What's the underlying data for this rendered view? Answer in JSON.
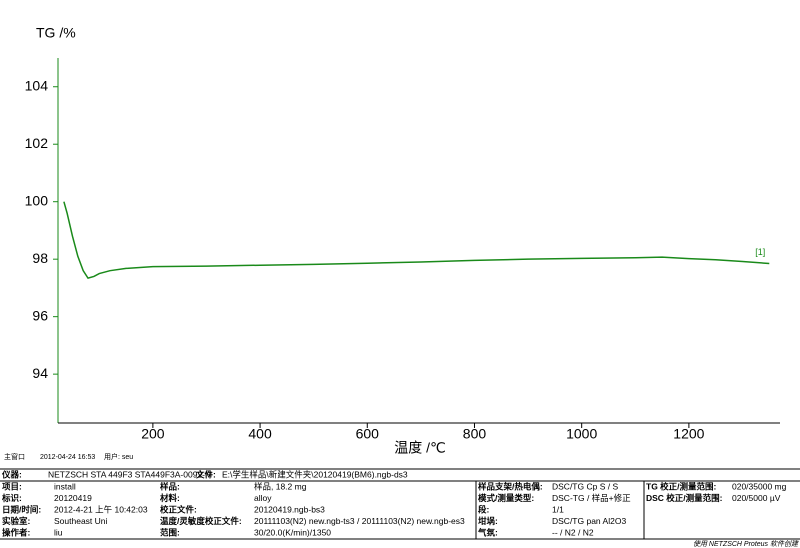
{
  "chart_data": {
    "type": "line",
    "ylabel": "TG /%",
    "xlabel": "温度 /℃",
    "xlim": [
      23,
      1370
    ],
    "ylim": [
      92.3,
      105
    ],
    "xticks": [
      200,
      400,
      600,
      800,
      1000,
      1200
    ],
    "yticks": [
      94,
      96,
      98,
      100,
      102,
      104
    ],
    "series": [
      {
        "name": "[1]",
        "color": "#1a8a1a",
        "x": [
          34,
          40,
          50,
          60,
          70,
          79,
          90,
          100,
          120,
          150,
          200,
          300,
          400,
          500,
          600,
          700,
          800,
          900,
          1000,
          1100,
          1150,
          1200,
          1250,
          1300,
          1350
        ],
        "values": [
          100,
          99.6,
          98.8,
          98.1,
          97.6,
          97.34,
          97.4,
          97.5,
          97.6,
          97.68,
          97.74,
          97.76,
          97.79,
          97.82,
          97.86,
          97.9,
          97.96,
          98.0,
          98.03,
          98.05,
          98.07,
          98.02,
          97.98,
          97.92,
          97.85
        ]
      }
    ]
  },
  "status": [
    "主窗口",
    "2012-04-24 16:53",
    "用户: seu"
  ],
  "footer": {
    "top": [
      "仪器:",
      "NETZSCH STA 449F3 STA449F3A-0092-M",
      "文件:",
      "E:\\学生样品\\新建文件夹\\20120419(BM6).ngb-ds3"
    ],
    "columns": [
      [
        [
          "项目:",
          "install"
        ],
        [
          "标识:",
          "20120419"
        ],
        [
          "日期/时间:",
          "2012-4-21 上午 10:42:03"
        ],
        [
          "实验室:",
          "Southeast Uni"
        ],
        [
          "操作者:",
          "liu"
        ]
      ],
      [
        [
          "样品:",
          "样品, 18.2 mg"
        ],
        [
          "材料:",
          "alloy"
        ],
        [
          "校正文件:",
          "20120419.ngb-bs3"
        ],
        [
          "温度/灵敏度校正文件:",
          "20111103(N2) new.ngb-ts3 / 20111103(N2) new.ngb-es3"
        ],
        [
          "范围:",
          "30/20.0(K/min)/1350"
        ]
      ],
      [
        [
          "样品支架/热电偶:",
          "DSC/TG Cp S / S"
        ],
        [
          "模式/测量类型:",
          "DSC-TG / 样品+修正"
        ],
        [
          "段:",
          "1/1"
        ],
        [
          "坩埚:",
          "DSC/TG pan Al2O3"
        ],
        [
          "气氛:",
          "-- / N2 / N2"
        ]
      ],
      [
        [
          "TG 校正/测量范围:",
          "020/35000 mg"
        ],
        [
          "DSC 校正/测量范围:",
          "020/5000 µV"
        ]
      ]
    ],
    "credit": "使用 NETZSCH Proteus 软件创建"
  }
}
